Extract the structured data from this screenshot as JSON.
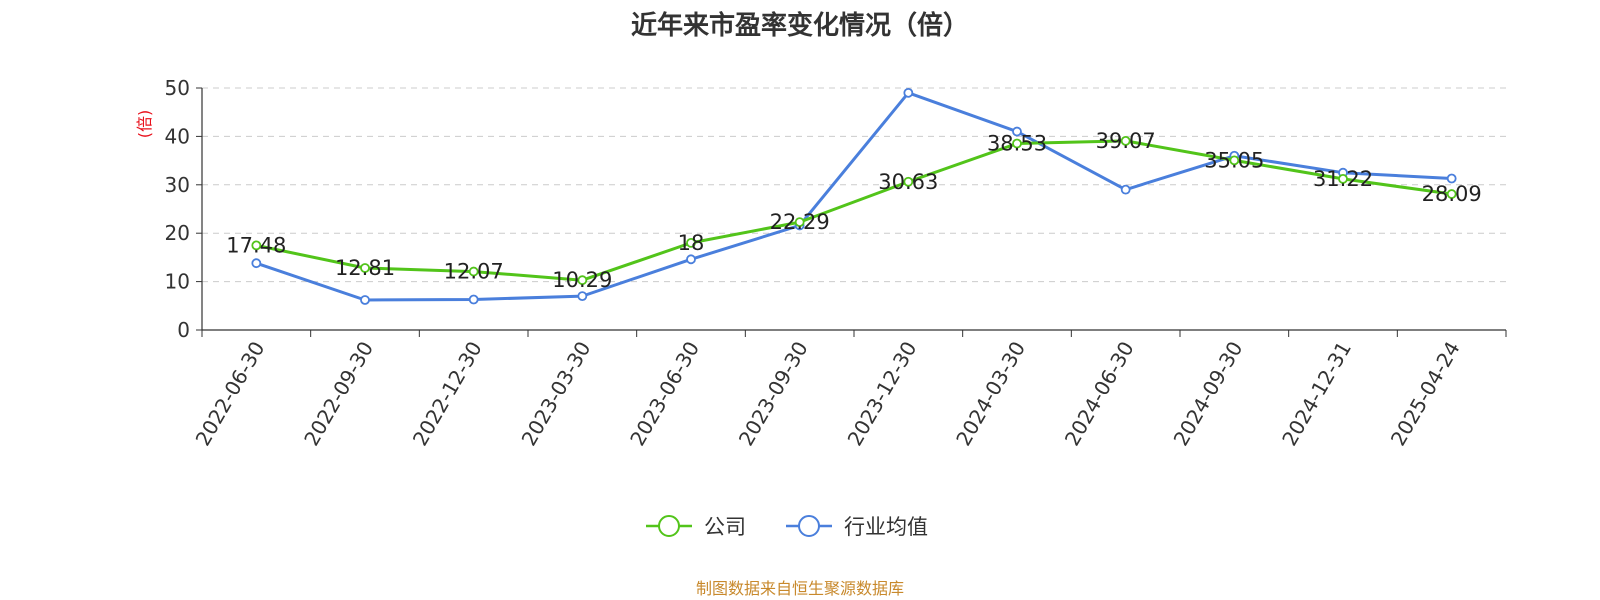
{
  "chart_data": {
    "type": "line",
    "title": "近年来市盈率变化情况（倍）",
    "y_unit": "(倍)",
    "categories": [
      "2022-06-30",
      "2022-09-30",
      "2022-12-30",
      "2023-03-30",
      "2023-06-30",
      "2023-09-30",
      "2023-12-30",
      "2024-03-30",
      "2024-06-30",
      "2024-09-30",
      "2024-12-31",
      "2025-04-24"
    ],
    "series": [
      {
        "name": "公司",
        "color": "#52c41a",
        "values": [
          17.48,
          12.81,
          12.07,
          10.29,
          18,
          22.29,
          30.63,
          38.53,
          39.07,
          35.05,
          31.22,
          28.09
        ],
        "labels": [
          "17.48",
          "12.81",
          "12.07",
          "10.29",
          "18",
          "22.29",
          "30.63",
          "38.53",
          "39.07",
          "35.05",
          "31.22",
          "28.09"
        ]
      },
      {
        "name": "行业均值",
        "color": "#4a7fdc",
        "values": [
          13.8,
          6.2,
          6.3,
          7.0,
          14.6,
          21.6,
          49.0,
          41.0,
          29.0,
          36.0,
          32.5,
          31.3
        ]
      }
    ],
    "ylim": [
      0,
      50
    ],
    "yticks": [
      0,
      10,
      20,
      30,
      40,
      50
    ],
    "grid": true,
    "legend_position": "bottom-center",
    "source": "制图数据来自恒生聚源数据库"
  }
}
